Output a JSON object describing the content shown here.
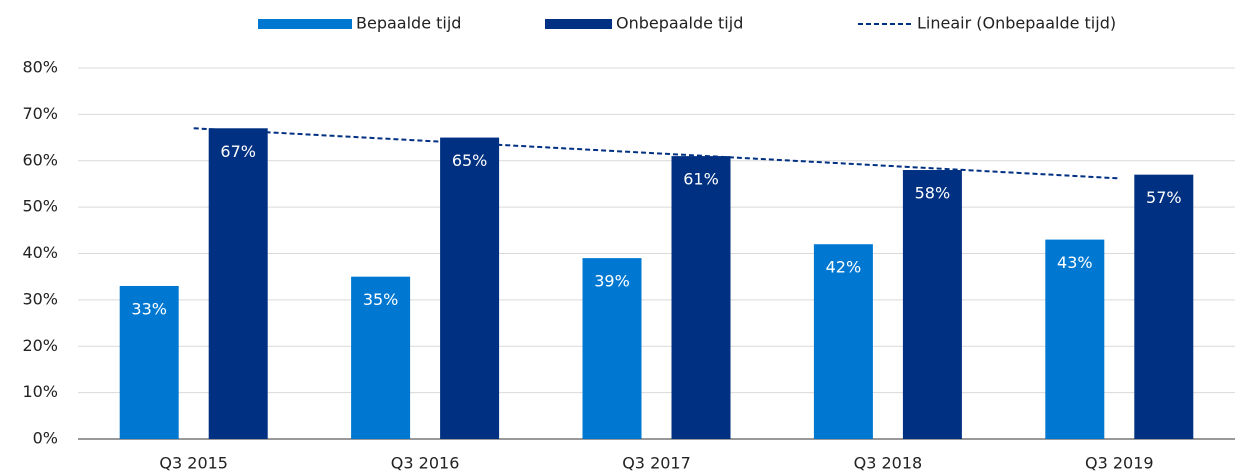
{
  "chart_data": {
    "type": "bar",
    "categories": [
      "Q3 2015",
      "Q3 2016",
      "Q3 2017",
      "Q3 2018",
      "Q3 2019"
    ],
    "series": [
      {
        "name": "Bepaalde tijd",
        "color": "#0078d2",
        "values": [
          33,
          35,
          39,
          42,
          43
        ],
        "value_labels": [
          "33%",
          "35%",
          "39%",
          "42%",
          "43%"
        ]
      },
      {
        "name": "Onbepaalde tijd",
        "color": "#003082",
        "values": [
          67,
          65,
          61,
          58,
          57
        ],
        "value_labels": [
          "67%",
          "65%",
          "61%",
          "58%",
          "57%"
        ]
      },
      {
        "name": "Lineair (Onbepaalde tijd)",
        "type": "line",
        "dashed": true,
        "color": "#003082",
        "values": [
          67,
          64.3,
          61.6,
          58.9,
          56.2
        ]
      }
    ],
    "ylim": [
      0,
      80
    ],
    "yticks": [
      {
        "value": 0,
        "label": "0%"
      },
      {
        "value": 10,
        "label": "10%"
      },
      {
        "value": 20,
        "label": "20%"
      },
      {
        "value": 30,
        "label": "30%"
      },
      {
        "value": 40,
        "label": "40%"
      },
      {
        "value": 50,
        "label": "50%"
      },
      {
        "value": 60,
        "label": "60%"
      },
      {
        "value": 70,
        "label": "70%"
      },
      {
        "value": 80,
        "label": "80%"
      }
    ],
    "grid": true,
    "legend": "top"
  }
}
